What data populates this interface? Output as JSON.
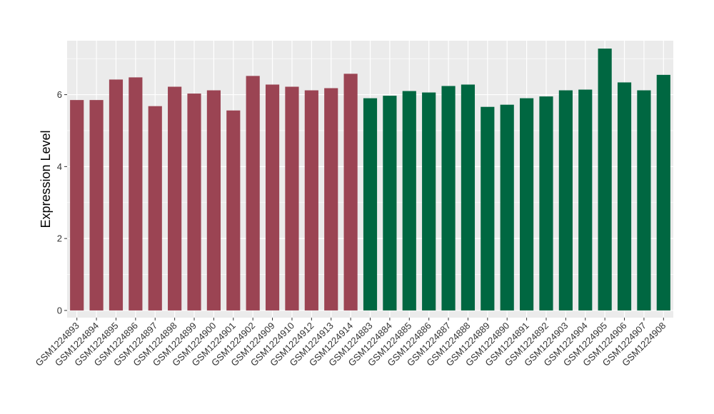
{
  "chart_data": {
    "type": "bar",
    "title": "",
    "xlabel": "",
    "ylabel": "Expression Level",
    "ylim": [
      -0.2,
      7.5
    ],
    "yticks": [
      0,
      2,
      4,
      6
    ],
    "grid": true,
    "legend": "none",
    "colors": {
      "panel_bg": "#EBEBEB",
      "grid": "#FFFFFF",
      "group1": "#9B4453",
      "group2": "#006741"
    },
    "categories": [
      "GSM1224893",
      "GSM1224894",
      "GSM1224895",
      "GSM1224896",
      "GSM1224897",
      "GSM1224898",
      "GSM1224899",
      "GSM1224900",
      "GSM1224901",
      "GSM1224902",
      "GSM1224909",
      "GSM1224910",
      "GSM1224912",
      "GSM1224913",
      "GSM1224914",
      "GSM1224883",
      "GSM1224884",
      "GSM1224885",
      "GSM1224886",
      "GSM1224887",
      "GSM1224888",
      "GSM1224889",
      "GSM1224890",
      "GSM1224891",
      "GSM1224892",
      "GSM1224903",
      "GSM1224904",
      "GSM1224905",
      "GSM1224906",
      "GSM1224907",
      "GSM1224908"
    ],
    "values": [
      5.85,
      5.85,
      6.42,
      6.48,
      5.68,
      6.22,
      6.03,
      6.12,
      5.56,
      6.52,
      6.28,
      6.22,
      6.12,
      6.18,
      6.58,
      5.9,
      5.97,
      6.1,
      6.06,
      6.24,
      6.28,
      5.66,
      5.72,
      5.9,
      5.95,
      6.12,
      6.14,
      7.28,
      6.34,
      6.12,
      6.55
    ],
    "groups": [
      1,
      1,
      1,
      1,
      1,
      1,
      1,
      1,
      1,
      1,
      1,
      1,
      1,
      1,
      1,
      2,
      2,
      2,
      2,
      2,
      2,
      2,
      2,
      2,
      2,
      2,
      2,
      2,
      2,
      2,
      2
    ]
  }
}
